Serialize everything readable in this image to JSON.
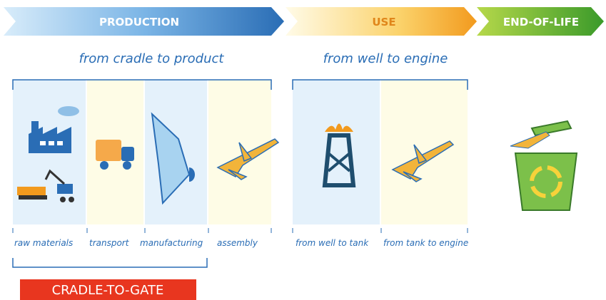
{
  "phases": [
    "PRODUCTION",
    "USE",
    "END-OF-LIFE"
  ],
  "scopes": [
    "from cradle to product",
    "from well to engine"
  ],
  "stages": [
    "raw materials",
    "transport",
    "manufacturing",
    "assembly",
    "from well to tank",
    "from tank to engine"
  ],
  "boundary": "CRADLE-TO-GATE"
}
